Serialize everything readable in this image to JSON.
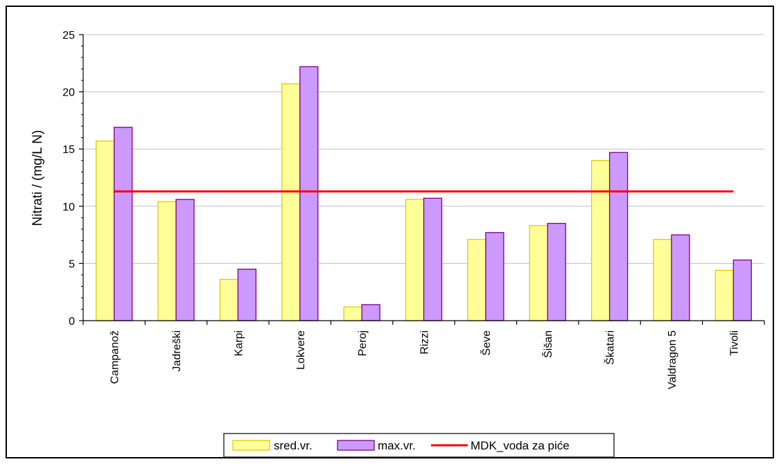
{
  "chart_data": {
    "type": "bar",
    "title": "",
    "xlabel": "",
    "ylabel": "Nitrati / (mg/L N)",
    "ylim": [
      0,
      25
    ],
    "yticks": [
      0,
      5,
      10,
      15,
      20,
      25
    ],
    "grid": true,
    "legend_position": "bottom",
    "categories": [
      "Campanož",
      "Jadreški",
      "Karpi",
      "Lokvere",
      "Peroj",
      "Rizzi",
      "Ševe",
      "Šišan",
      "Škatari",
      "Valdragon 5",
      "Tivoli"
    ],
    "series": [
      {
        "name": "sred.vr.",
        "color": "#ffff99",
        "stroke": "#e6c800",
        "values": [
          15.7,
          10.4,
          3.6,
          20.7,
          1.2,
          10.6,
          7.1,
          8.3,
          14.0,
          7.1,
          4.4
        ]
      },
      {
        "name": "max.vr.",
        "color": "#cc99ff",
        "stroke": "#800080",
        "values": [
          16.9,
          10.6,
          4.5,
          22.2,
          1.4,
          10.7,
          7.7,
          8.5,
          14.7,
          7.5,
          5.3
        ]
      }
    ],
    "reference_line": {
      "name": "MDK_voda za piće",
      "value": 11.3,
      "color": "#ff0000"
    }
  }
}
